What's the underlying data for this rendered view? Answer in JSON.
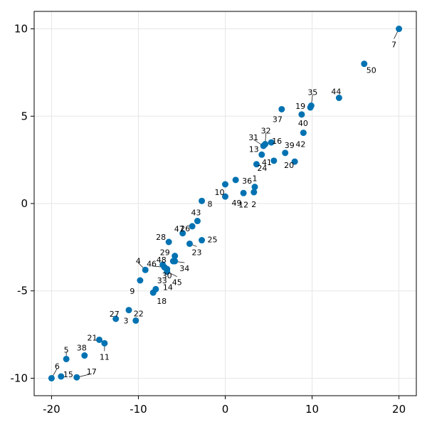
{
  "chart_data": {
    "type": "scatter",
    "title": "",
    "xlabel": "",
    "ylabel": "",
    "xlim": [
      -22,
      22
    ],
    "ylim": [
      -11,
      11
    ],
    "xticks": [
      "-20",
      "-10",
      "0",
      "10",
      "20"
    ],
    "yticks": [
      "-10",
      "-5",
      "0",
      "5",
      "10"
    ],
    "grid": true,
    "marker_color": "#0072b2",
    "points": [
      {
        "label": "1",
        "x": 3.4,
        "y": 0.95
      },
      {
        "label": "2",
        "x": 3.3,
        "y": 0.65
      },
      {
        "label": "3",
        "x": -11.1,
        "y": -6.1
      },
      {
        "label": "4",
        "x": -9.2,
        "y": -3.8
      },
      {
        "label": "5",
        "x": -18.3,
        "y": -8.9
      },
      {
        "label": "6",
        "x": -20.0,
        "y": -10.0
      },
      {
        "label": "7",
        "x": 20.0,
        "y": 10.0
      },
      {
        "label": "8",
        "x": -2.7,
        "y": 0.15
      },
      {
        "label": "9",
        "x": -9.8,
        "y": -4.4
      },
      {
        "label": "10",
        "x": 0.0,
        "y": 1.1
      },
      {
        "label": "11",
        "x": -13.9,
        "y": -8.0
      },
      {
        "label": "12",
        "x": 2.1,
        "y": 0.6
      },
      {
        "label": "13",
        "x": 4.2,
        "y": 2.8
      },
      {
        "label": "14",
        "x": -8.0,
        "y": -4.9
      },
      {
        "label": "15",
        "x": -18.9,
        "y": -9.9
      },
      {
        "label": "16",
        "x": 5.3,
        "y": 3.5
      },
      {
        "label": "17",
        "x": -17.1,
        "y": -9.95
      },
      {
        "label": "18",
        "x": -8.3,
        "y": -5.1
      },
      {
        "label": "19",
        "x": 9.8,
        "y": 5.5
      },
      {
        "label": "20",
        "x": 8.0,
        "y": 2.4
      },
      {
        "label": "21",
        "x": -14.5,
        "y": -7.8
      },
      {
        "label": "22",
        "x": -10.3,
        "y": -6.7
      },
      {
        "label": "23",
        "x": -4.1,
        "y": -2.3
      },
      {
        "label": "24",
        "x": 3.6,
        "y": 2.25
      },
      {
        "label": "25",
        "x": -2.7,
        "y": -2.1
      },
      {
        "label": "26",
        "x": -3.8,
        "y": -1.3
      },
      {
        "label": "27",
        "x": -12.6,
        "y": -6.6
      },
      {
        "label": "28",
        "x": -6.5,
        "y": -2.2
      },
      {
        "label": "29",
        "x": -5.8,
        "y": -3.0
      },
      {
        "label": "30",
        "x": -7.2,
        "y": -3.5
      },
      {
        "label": "31",
        "x": 4.4,
        "y": 3.3
      },
      {
        "label": "32",
        "x": 4.6,
        "y": 3.4
      },
      {
        "label": "33",
        "x": -6.7,
        "y": -3.75
      },
      {
        "label": "34",
        "x": -6.0,
        "y": -3.3
      },
      {
        "label": "35",
        "x": 9.9,
        "y": 5.6
      },
      {
        "label": "36",
        "x": 1.2,
        "y": 1.35
      },
      {
        "label": "37",
        "x": 6.5,
        "y": 5.4
      },
      {
        "label": "38",
        "x": -16.2,
        "y": -8.7
      },
      {
        "label": "39",
        "x": 6.9,
        "y": 2.9
      },
      {
        "label": "40",
        "x": 8.8,
        "y": 5.1
      },
      {
        "label": "41",
        "x": 5.6,
        "y": 2.45
      },
      {
        "label": "42",
        "x": 9.0,
        "y": 4.05
      },
      {
        "label": "43",
        "x": -3.2,
        "y": -1.0
      },
      {
        "label": "44",
        "x": 13.1,
        "y": 6.05
      },
      {
        "label": "45",
        "x": -6.7,
        "y": -3.9
      },
      {
        "label": "46",
        "x": -7.0,
        "y": -3.65
      },
      {
        "label": "47",
        "x": -4.9,
        "y": -1.7
      },
      {
        "label": "48",
        "x": -5.8,
        "y": -3.3
      },
      {
        "label": "49",
        "x": 0.0,
        "y": 0.4
      },
      {
        "label": "50",
        "x": 16.0,
        "y": 8.0
      }
    ]
  }
}
